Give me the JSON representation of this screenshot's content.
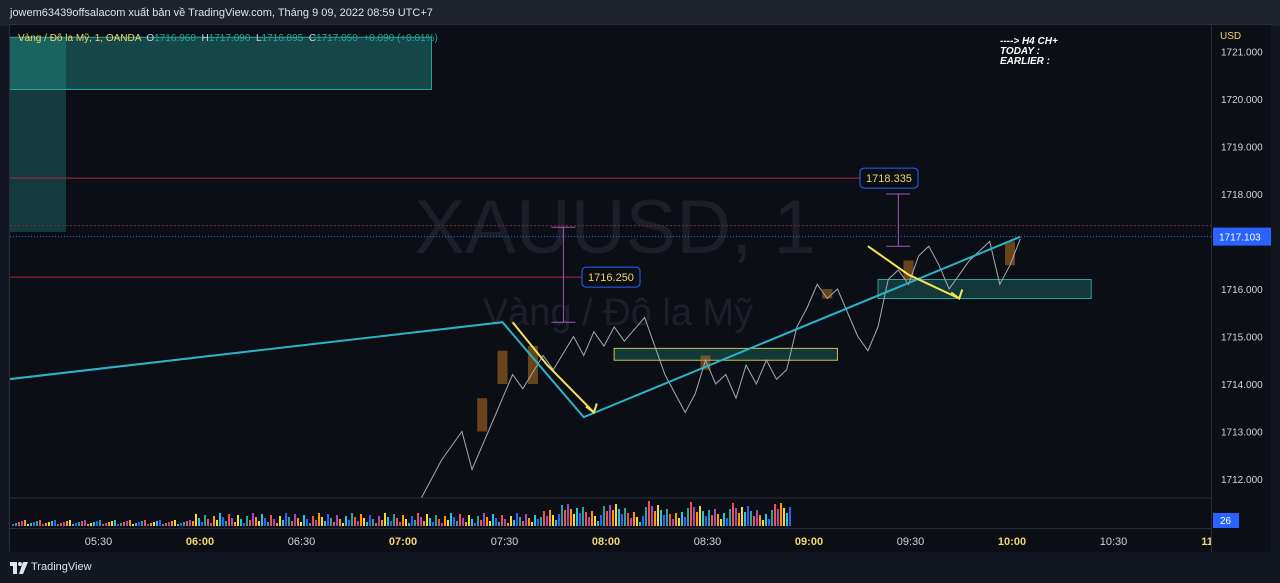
{
  "header": {
    "caption": "jowem63439offsalacom xuất bản về TradingView.com, Tháng 9 09, 2022 08:59 UTC+7"
  },
  "legend": {
    "symbol": "Vàng / Đô la Mỹ, 1, OANDA",
    "open_label": "O",
    "open": "1716.960",
    "high_label": "H",
    "high": "1717.090",
    "low_label": "L",
    "low": "1716.895",
    "close_label": "C",
    "close": "1717.050",
    "change": "+0.090 (+0.01%)"
  },
  "watermark": {
    "ticker": "XAUUSD, 1",
    "name": "Vàng / Đô la Mỹ"
  },
  "note": {
    "line1": "----> H4 CH+",
    "line2": "TODAY :",
    "line3": "EARLIER :"
  },
  "price_scale": {
    "currency": "USD",
    "current_price": "1717.103"
  },
  "labels": {
    "resistance_price": "1718.335",
    "support_price": "1716.250",
    "volume_value": "26"
  },
  "footer": {
    "brand": "TradingView"
  },
  "colors": {
    "background": "#0c0e15",
    "zigzag": "#2bb3c8",
    "arrow": "#f5e35a",
    "measure": "#9b59b6",
    "horizontal_line": "#b2283a",
    "current_price_badge": "#2962ff"
  },
  "chart_data": {
    "type": "line",
    "y_range": [
      1711.6,
      1721.3
    ],
    "y_ticks": [
      1712.0,
      1713.0,
      1714.0,
      1715.0,
      1716.0,
      1717.0,
      1718.0,
      1719.0,
      1720.0,
      1721.0
    ],
    "y_tick_labels": [
      "1712.000",
      "1713.000",
      "1714.000",
      "1715.000",
      "1716.000",
      "1717.000",
      "1718.000",
      "1719.000",
      "1720.000",
      "1721.000"
    ],
    "x_ticks": [
      "05:30",
      "06:00",
      "06:30",
      "07:00",
      "07:30",
      "08:00",
      "08:30",
      "09:00",
      "09:30",
      "10:00",
      "10:30",
      "11:00"
    ],
    "x_tick_bold": [
      false,
      true,
      false,
      true,
      false,
      true,
      false,
      true,
      false,
      true,
      false,
      true
    ],
    "series": [
      {
        "kind": "price",
        "points": [
          [
            7.1,
            1711.6
          ],
          [
            7.2,
            1712.4
          ],
          [
            7.3,
            1713.0
          ],
          [
            7.35,
            1712.2
          ],
          [
            7.45,
            1713.2
          ],
          [
            7.55,
            1714.2
          ],
          [
            7.6,
            1713.9
          ],
          [
            7.7,
            1714.6
          ],
          [
            7.75,
            1714.3
          ],
          [
            7.85,
            1715.0
          ],
          [
            7.9,
            1714.6
          ],
          [
            7.95,
            1715.1
          ],
          [
            8.0,
            1714.8
          ],
          [
            8.05,
            1715.2
          ],
          [
            8.1,
            1714.9
          ],
          [
            8.2,
            1715.4
          ],
          [
            8.3,
            1714.2
          ],
          [
            8.35,
            1713.8
          ],
          [
            8.4,
            1713.4
          ],
          [
            8.45,
            1713.8
          ],
          [
            8.5,
            1714.5
          ],
          [
            8.55,
            1714.0
          ],
          [
            8.6,
            1714.2
          ],
          [
            8.65,
            1713.7
          ],
          [
            8.7,
            1714.4
          ],
          [
            8.75,
            1714.0
          ],
          [
            8.8,
            1714.5
          ],
          [
            8.85,
            1714.1
          ],
          [
            8.9,
            1714.3
          ],
          [
            8.95,
            1715.2
          ],
          [
            9.0,
            1715.6
          ],
          [
            9.05,
            1716.1
          ],
          [
            9.1,
            1715.8
          ],
          [
            9.15,
            1716.0
          ],
          [
            9.25,
            1715.0
          ],
          [
            9.3,
            1714.7
          ],
          [
            9.35,
            1715.2
          ],
          [
            9.4,
            1716.2
          ],
          [
            9.45,
            1716.4
          ],
          [
            9.5,
            1716.1
          ],
          [
            9.55,
            1716.7
          ],
          [
            9.6,
            1716.9
          ],
          [
            9.65,
            1716.5
          ],
          [
            9.7,
            1716.0
          ],
          [
            9.75,
            1716.3
          ],
          [
            9.8,
            1716.6
          ],
          [
            9.85,
            1716.8
          ],
          [
            9.9,
            1717.0
          ],
          [
            9.95,
            1716.1
          ],
          [
            10.0,
            1716.5
          ],
          [
            10.05,
            1717.05
          ]
        ]
      },
      {
        "kind": "zigzag",
        "points": [
          [
            0,
            1711.6
          ],
          [
            7.5,
            1715.3
          ],
          [
            7.9,
            1713.3
          ],
          [
            10.05,
            1717.1
          ]
        ]
      },
      {
        "kind": "arrow",
        "points": [
          [
            7.55,
            1715.3
          ],
          [
            7.72,
            1714.4
          ],
          [
            7.95,
            1713.4
          ]
        ]
      },
      {
        "kind": "arrow",
        "points": [
          [
            9.3,
            1716.9
          ],
          [
            9.5,
            1716.3
          ],
          [
            9.75,
            1715.8
          ]
        ]
      }
    ],
    "horizontal_lines": [
      1718.335,
      1716.25
    ],
    "current_price": 1717.103,
    "zones": [
      {
        "x": [
          0,
          7.15
        ],
        "y": [
          1720.2,
          1721.3
        ],
        "label": "supply"
      },
      {
        "x": [
          8.05,
          9.15
        ],
        "y": [
          1714.5,
          1714.75
        ],
        "label": "demand"
      },
      {
        "x": [
          9.35,
          10.4
        ],
        "y": [
          1715.8,
          1716.2
        ],
        "label": "demand"
      }
    ]
  }
}
